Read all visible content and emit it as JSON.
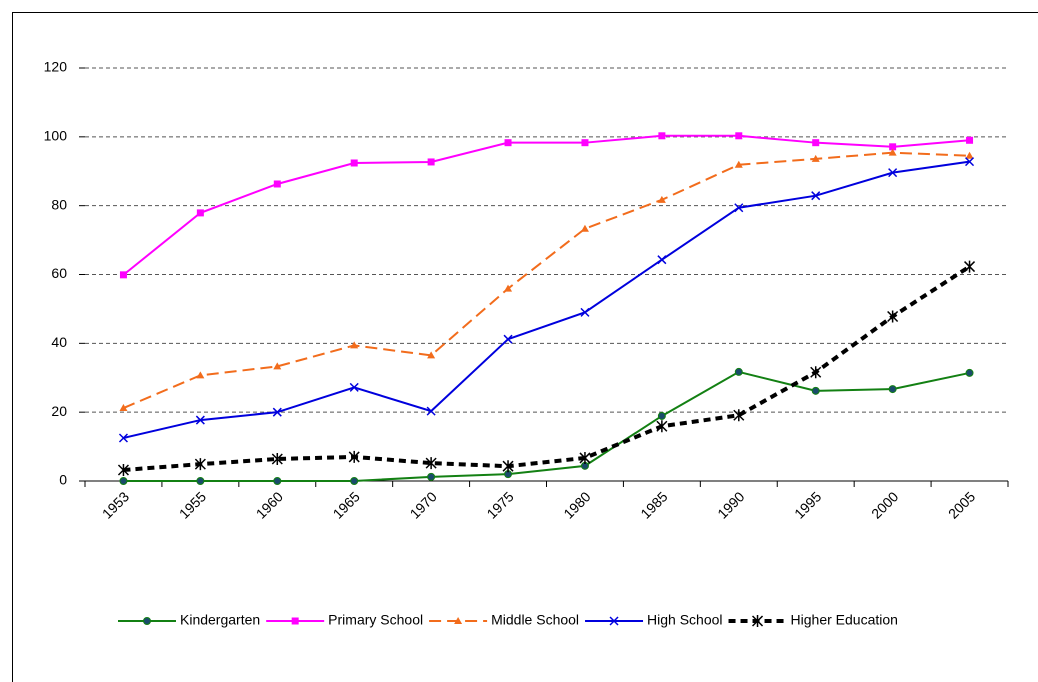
{
  "chart_data": {
    "type": "line",
    "categories": [
      "1953",
      "1955",
      "1960",
      "1965",
      "1970",
      "1975",
      "1980",
      "1985",
      "1990",
      "1995",
      "2000",
      "2005"
    ],
    "ylim": [
      0,
      120
    ],
    "yticks": [
      0,
      20,
      40,
      60,
      80,
      100,
      120
    ],
    "grid": true,
    "legend": "bottom",
    "series": [
      {
        "name": "Kindergarten",
        "color": "#138013",
        "marker": "circle",
        "dash": "solid",
        "values": [
          0,
          0,
          0,
          0,
          1.2,
          2,
          4.4,
          18.9,
          31.7,
          26.2,
          26.7,
          31.4
        ]
      },
      {
        "name": "Primary School",
        "color": "#ff00ff",
        "marker": "square",
        "dash": "solid",
        "values": [
          59.9,
          77.9,
          86.3,
          92.4,
          92.7,
          98.3,
          98.3,
          100.3,
          100.3,
          98.3,
          97.1,
          99
        ]
      },
      {
        "name": "Middle School",
        "color": "#f26c1c",
        "marker": "triangle",
        "dash": "long",
        "values": [
          21.2,
          30.7,
          33.3,
          39.4,
          36.5,
          55.9,
          73.3,
          81.7,
          91.9,
          93.6,
          95.4,
          94.5
        ]
      },
      {
        "name": "High School",
        "color": "#0000dd",
        "marker": "x",
        "dash": "solid",
        "values": [
          12.5,
          17.7,
          20,
          27.2,
          20.3,
          41.2,
          49,
          64.3,
          79.4,
          82.9,
          89.6,
          92.8
        ]
      },
      {
        "name": "Higher Education",
        "color": "#000000",
        "marker": "asterisk",
        "dash": "thick",
        "values": [
          3.2,
          4.9,
          6.4,
          7,
          5.2,
          4.3,
          6.7,
          15.9,
          19.1,
          31.6,
          47.8,
          62.3
        ]
      }
    ]
  }
}
